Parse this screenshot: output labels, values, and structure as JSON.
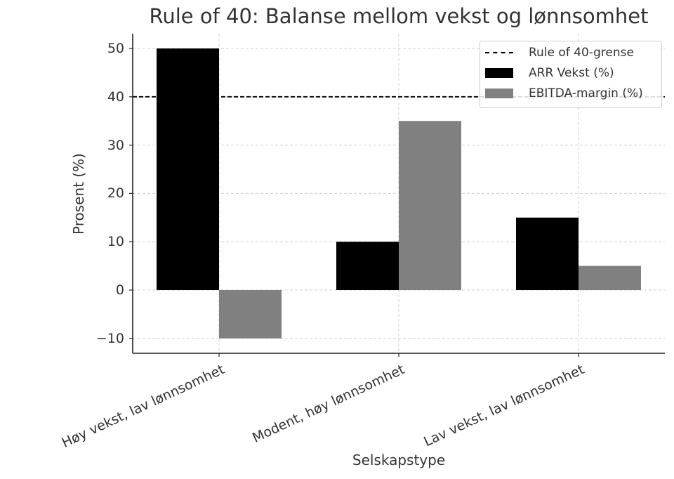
{
  "chart_data": {
    "type": "bar",
    "title": "Rule of 40: Balanse mellom vekst og lønnsomhet",
    "xlabel": "Selskapstype",
    "ylabel": "Prosent (%)",
    "categories": [
      "Høy vekst, lav lønnsomhet",
      "Modent, høy lønnsomhet",
      "Lav vekst, lav lønnsomhet"
    ],
    "series": [
      {
        "name": "ARR Vekst (%)",
        "values": [
          50,
          10,
          15
        ],
        "color": "#000000"
      },
      {
        "name": "EBITDA-margin (%)",
        "values": [
          -10,
          35,
          5
        ],
        "color": "#808080"
      }
    ],
    "reference_line": {
      "name": "Rule of 40-grense",
      "value": 40,
      "style": "dashed",
      "color": "#000000"
    },
    "ylim": [
      -13,
      53
    ],
    "yticks": [
      -10,
      0,
      10,
      20,
      30,
      40,
      50
    ],
    "ytick_labels": [
      "−10",
      "0",
      "10",
      "20",
      "30",
      "40",
      "50"
    ],
    "grid": true,
    "legend_position": "upper right",
    "legend": [
      "Rule of 40-grense",
      "ARR Vekst (%)",
      "EBITDA-margin (%)"
    ]
  }
}
